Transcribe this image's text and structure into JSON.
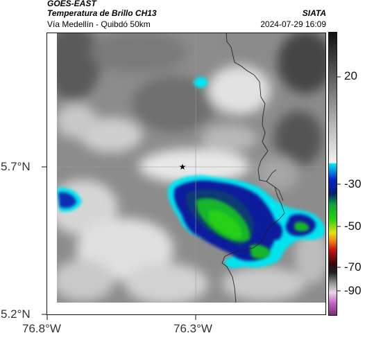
{
  "header": {
    "satellite": "GOES-EAST",
    "product": "Temperatura de Brillo CH13",
    "region": "Vía Medellín - Quibdó 50km",
    "agency": "SIATA",
    "timestamp": "2024-07-29 16:09"
  },
  "axes": {
    "lat_ticks": [
      "5.7°N",
      "5.2°N"
    ],
    "lon_ticks": [
      "76.8°W",
      "76.3°W"
    ]
  },
  "colorbar": {
    "ticks": [
      "20",
      "-30",
      "-50",
      "-70",
      "-90"
    ]
  },
  "colors": {
    "background": "#ffffff",
    "grayscale_dark": "#3c3c3c",
    "grayscale_light": "#f0f0f0",
    "cyan": "#00e5f0",
    "blue": "#0a1f9c",
    "green": "#12c21e",
    "red": "#d42a1a",
    "magenta": "#b64fb3"
  },
  "icons": {
    "marker": "star-icon"
  }
}
